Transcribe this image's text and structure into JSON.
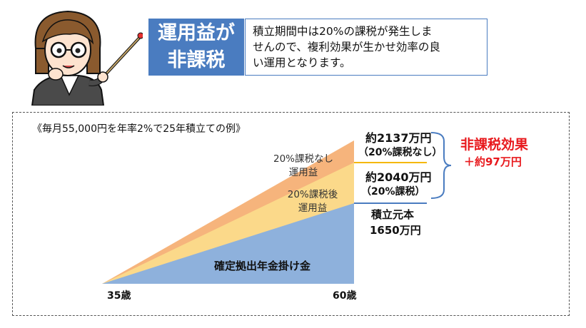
{
  "header": {
    "title_line1": "運用益が",
    "title_line2": "非課税",
    "description_lines": [
      "積立期間中は20%の課税が発生しま",
      "せんので、複利効果が生かせ効率の良",
      "い運用となります。"
    ]
  },
  "example": {
    "title": "《毎月55,000円を年率2%で25年積立ての例》",
    "regions": {
      "untaxed_label_line1": "20%課税なし",
      "untaxed_label_line2": "運用益",
      "taxed_label_line1": "20%課税後",
      "taxed_label_line2": "運用益",
      "principal_label": "確定拠出年金掛け金"
    },
    "axis": {
      "start_label": "35歳",
      "end_label": "60歳"
    },
    "callouts": {
      "untaxed_amount": "約2137万円",
      "untaxed_note": "（20%課税なし）",
      "taxed_amount": "約2040万円",
      "taxed_note": "（20%課税）",
      "principal_title": "積立元本",
      "principal_amount": "1650万円"
    },
    "effect": {
      "title": "非課税効果",
      "value": "＋約97万円"
    }
  },
  "colors": {
    "header_blue": "#4a7cc0",
    "principal_blue": "#8eb1dc",
    "taxed_yellow": "#fbd98a",
    "untaxed_orange": "#f6b47c",
    "yellow_line": "#f5b800",
    "effect_red": "#e8191d"
  }
}
